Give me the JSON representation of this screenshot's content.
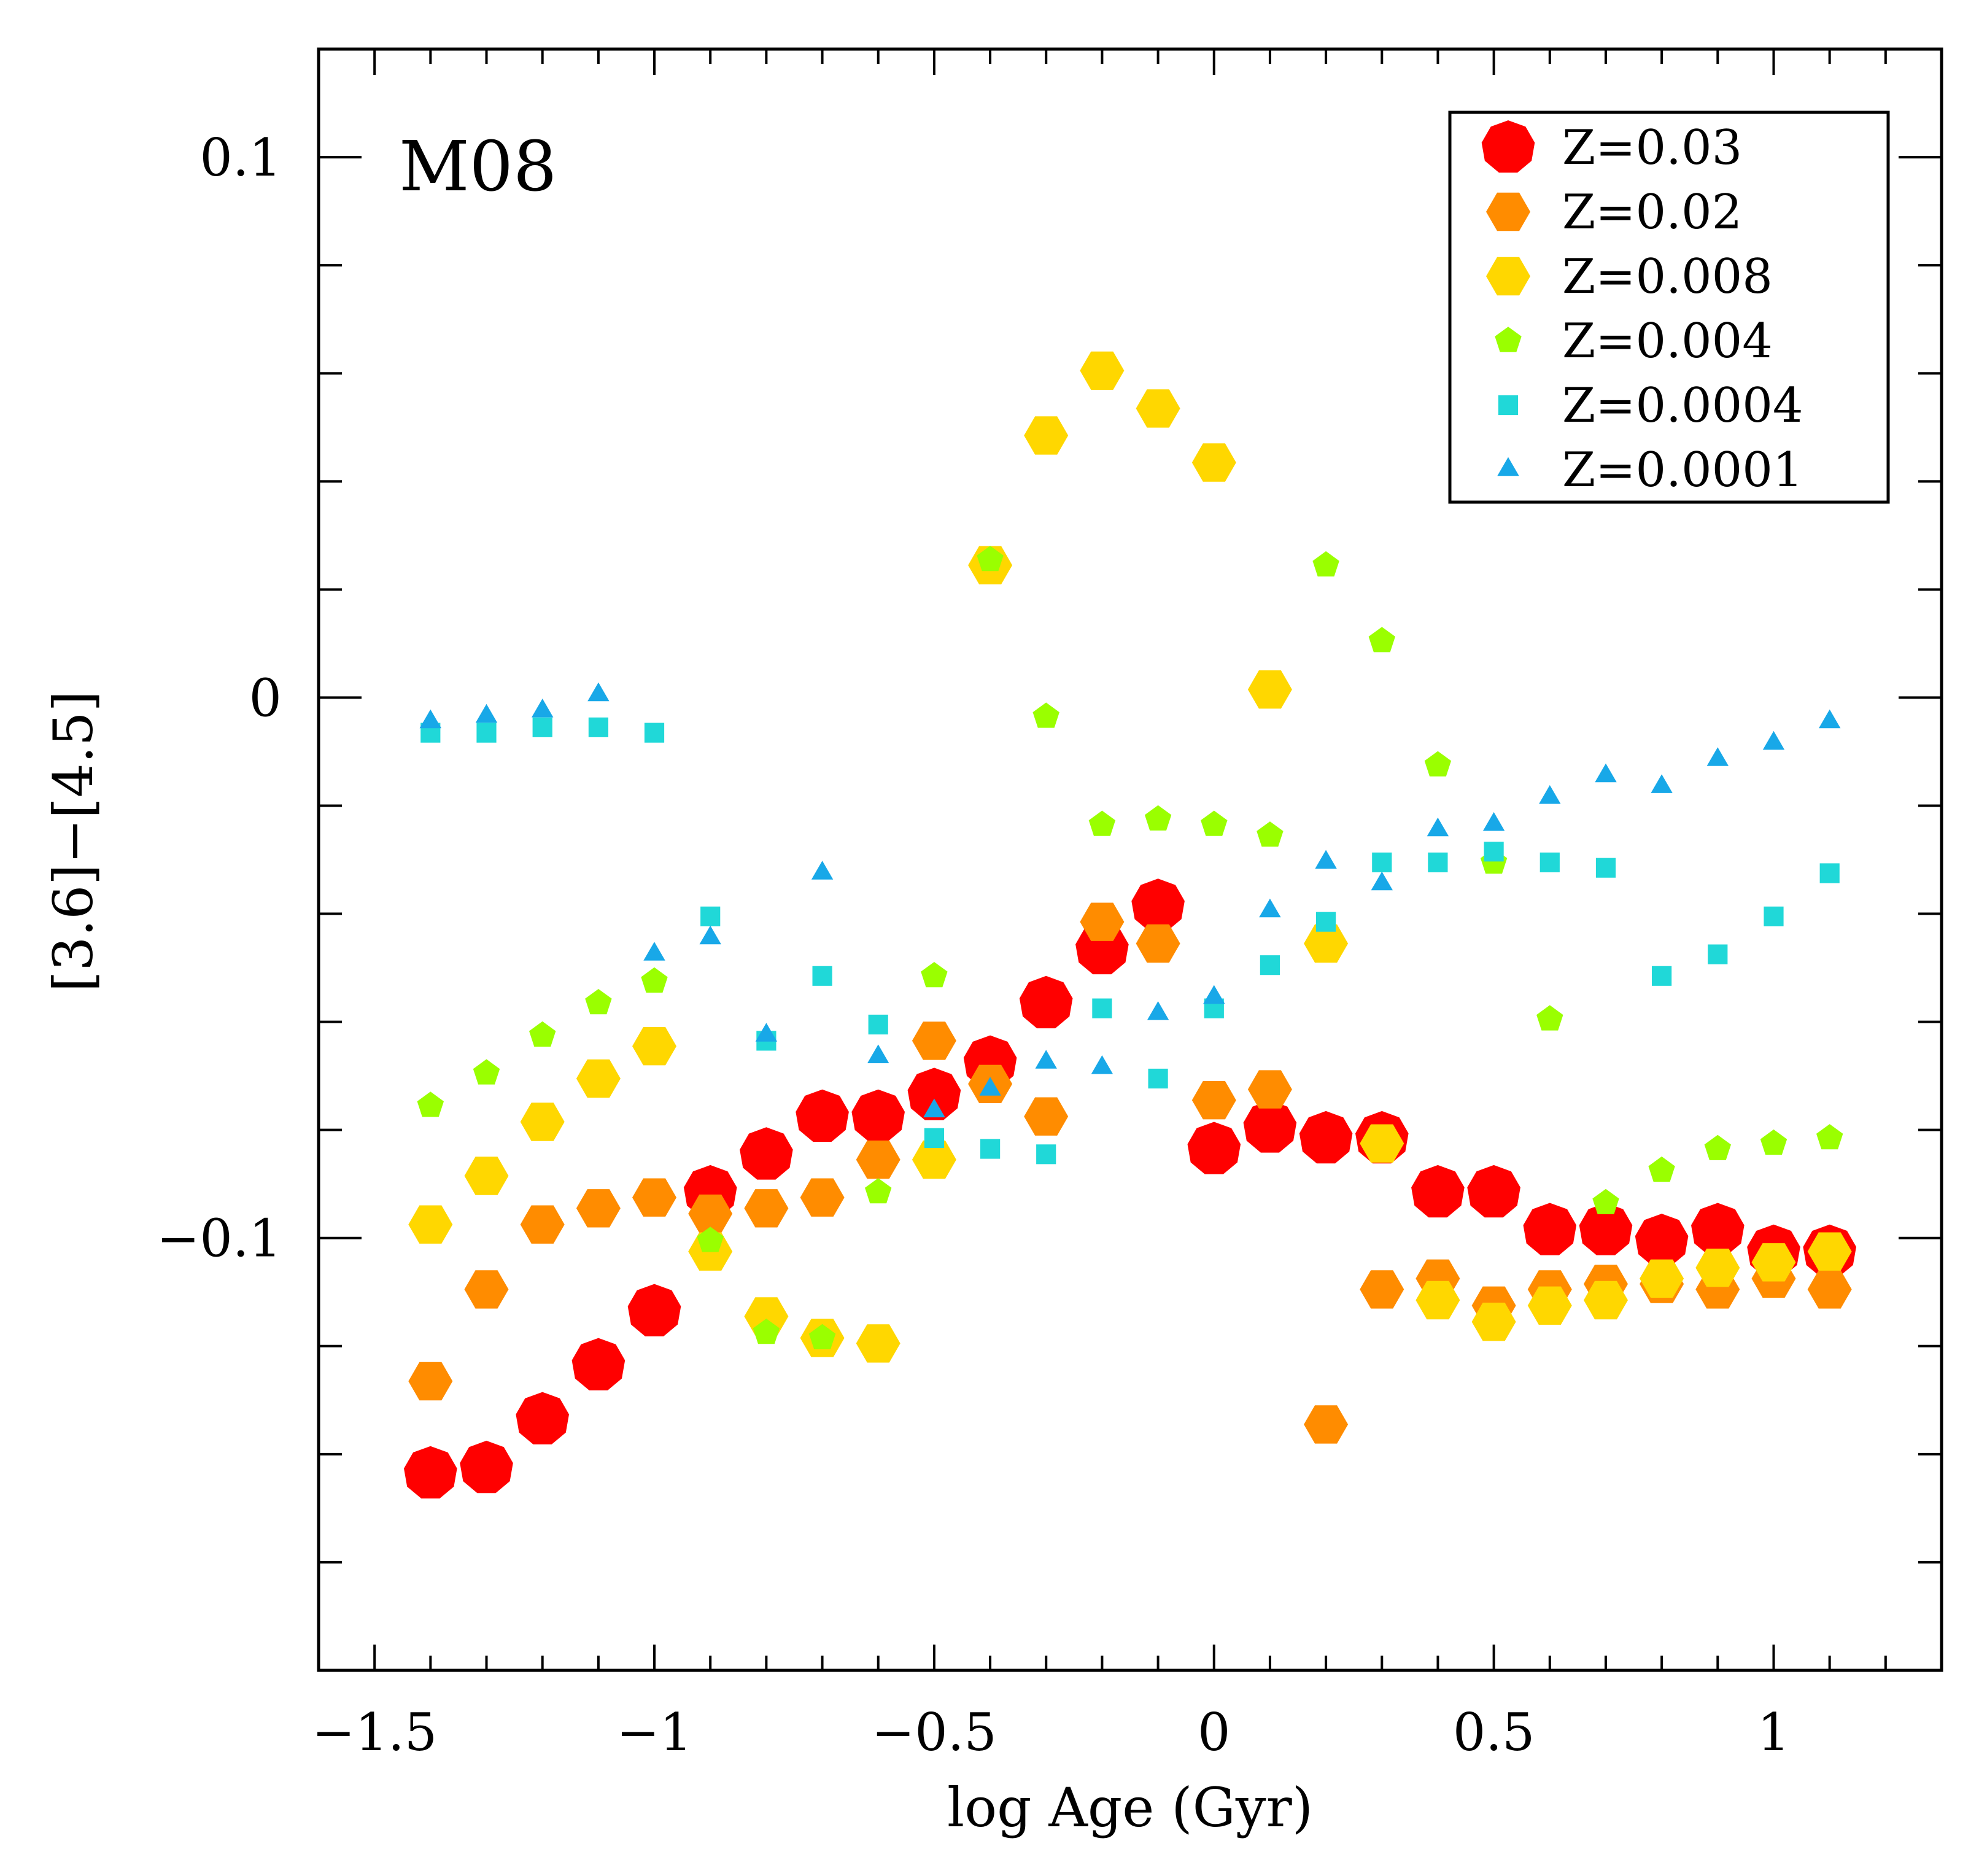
{
  "chart_data": {
    "type": "scatter",
    "title": "",
    "panel_label": "M08",
    "xlabel": "log Age (Gyr)",
    "ylabel": "[3.6]−[4.5]",
    "xlim": [
      -1.6,
      1.3
    ],
    "ylim": [
      -0.18,
      0.12
    ],
    "grid": false,
    "legend_position": "top-right",
    "x_ticks": [
      {
        "value": -1.5,
        "label": "−1.5"
      },
      {
        "value": -1.0,
        "label": "−1"
      },
      {
        "value": -0.5,
        "label": "−0.5"
      },
      {
        "value": 0.0,
        "label": "0"
      },
      {
        "value": 0.5,
        "label": "0.5"
      },
      {
        "value": 1.0,
        "label": "1"
      }
    ],
    "y_ticks": [
      {
        "value": 0.1,
        "label": "0.1"
      },
      {
        "value": 0.0,
        "label": "0"
      },
      {
        "value": -0.1,
        "label": "−0.1"
      }
    ],
    "series": [
      {
        "name": "Z=0.03",
        "color": "#ff0000",
        "marker": "heptagon",
        "size": "large",
        "points": [
          [
            -1.4,
            -0.1435
          ],
          [
            -1.3,
            -0.1425
          ],
          [
            -1.2,
            -0.1335
          ],
          [
            -1.1,
            -0.1235
          ],
          [
            -1.0,
            -0.1135
          ],
          [
            -0.9,
            -0.0915
          ],
          [
            -0.8,
            -0.0845
          ],
          [
            -0.7,
            -0.0775
          ],
          [
            -0.6,
            -0.0775
          ],
          [
            -0.5,
            -0.0735
          ],
          [
            -0.4,
            -0.0675
          ],
          [
            -0.3,
            -0.0565
          ],
          [
            -0.2,
            -0.0465
          ],
          [
            -0.1,
            -0.0385
          ],
          [
            0.0,
            -0.0835
          ],
          [
            0.1,
            -0.0795
          ],
          [
            0.2,
            -0.0815
          ],
          [
            0.3,
            -0.0815
          ],
          [
            0.4,
            -0.0915
          ],
          [
            0.5,
            -0.0915
          ],
          [
            0.6,
            -0.0985
          ],
          [
            0.7,
            -0.0985
          ],
          [
            0.8,
            -0.1005
          ],
          [
            0.9,
            -0.0985
          ],
          [
            1.0,
            -0.1025
          ],
          [
            1.1,
            -0.1025
          ]
        ]
      },
      {
        "name": "Z=0.02",
        "color": "#ff8c00",
        "marker": "hexagon",
        "size": "medium",
        "points": [
          [
            -1.4,
            -0.1265
          ],
          [
            -1.3,
            -0.1095
          ],
          [
            -1.2,
            -0.0975
          ],
          [
            -1.1,
            -0.0945
          ],
          [
            -1.0,
            -0.0925
          ],
          [
            -0.9,
            -0.0955
          ],
          [
            -0.8,
            -0.0945
          ],
          [
            -0.7,
            -0.0925
          ],
          [
            -0.6,
            -0.0855
          ],
          [
            -0.5,
            -0.0635
          ],
          [
            -0.4,
            -0.0715
          ],
          [
            -0.3,
            -0.0775
          ],
          [
            -0.2,
            -0.0415
          ],
          [
            -0.1,
            -0.0455
          ],
          [
            0.0,
            -0.0745
          ],
          [
            0.1,
            -0.0725
          ],
          [
            0.2,
            -0.1345
          ],
          [
            0.3,
            -0.1095
          ],
          [
            0.4,
            -0.1075
          ],
          [
            0.5,
            -0.1125
          ],
          [
            0.6,
            -0.1095
          ],
          [
            0.7,
            -0.1085
          ],
          [
            0.8,
            -0.1085
          ],
          [
            0.9,
            -0.1095
          ],
          [
            1.0,
            -0.1075
          ],
          [
            1.1,
            -0.1095
          ]
        ]
      },
      {
        "name": "Z=0.008",
        "color": "#ffd700",
        "marker": "hexagon",
        "size": "medium",
        "points": [
          [
            -1.4,
            -0.0975
          ],
          [
            -1.3,
            -0.0885
          ],
          [
            -1.2,
            -0.0785
          ],
          [
            -1.1,
            -0.0705
          ],
          [
            -1.0,
            -0.0645
          ],
          [
            -0.9,
            -0.1025
          ],
          [
            -0.8,
            -0.1145
          ],
          [
            -0.7,
            -0.1185
          ],
          [
            -0.6,
            -0.1195
          ],
          [
            -0.5,
            -0.0855
          ],
          [
            -0.4,
            0.0245
          ],
          [
            -0.3,
            0.0485
          ],
          [
            -0.2,
            0.0605
          ],
          [
            -0.1,
            0.0535
          ],
          [
            0.0,
            0.0435
          ],
          [
            0.1,
            0.0015
          ],
          [
            0.2,
            -0.0455
          ],
          [
            0.3,
            -0.0825
          ],
          [
            0.4,
            -0.1115
          ],
          [
            0.5,
            -0.1155
          ],
          [
            0.6,
            -0.1125
          ],
          [
            0.7,
            -0.1115
          ],
          [
            0.8,
            -0.1075
          ],
          [
            0.9,
            -0.1055
          ],
          [
            1.0,
            -0.1045
          ],
          [
            1.1,
            -0.1025
          ]
        ]
      },
      {
        "name": "Z=0.004",
        "color": "#9aff00",
        "marker": "pentagon",
        "size": "small",
        "points": [
          [
            -1.4,
            -0.0755
          ],
          [
            -1.3,
            -0.0695
          ],
          [
            -1.2,
            -0.0625
          ],
          [
            -1.1,
            -0.0565
          ],
          [
            -1.0,
            -0.0525
          ],
          [
            -0.9,
            -0.1005
          ],
          [
            -0.8,
            -0.1175
          ],
          [
            -0.7,
            -0.1185
          ],
          [
            -0.6,
            -0.0915
          ],
          [
            -0.5,
            -0.0515
          ],
          [
            -0.4,
            0.0255
          ],
          [
            -0.3,
            -0.0035
          ],
          [
            -0.2,
            -0.0235
          ],
          [
            -0.1,
            -0.0225
          ],
          [
            0.0,
            -0.0235
          ],
          [
            0.1,
            -0.0255
          ],
          [
            0.2,
            0.0245
          ],
          [
            0.3,
            0.0105
          ],
          [
            0.4,
            -0.0125
          ],
          [
            0.5,
            -0.0305
          ],
          [
            0.6,
            -0.0595
          ],
          [
            0.7,
            -0.0935
          ],
          [
            0.8,
            -0.0875
          ],
          [
            0.9,
            -0.0835
          ],
          [
            1.0,
            -0.0825
          ],
          [
            1.1,
            -0.0815
          ]
        ]
      },
      {
        "name": "Z=0.0004",
        "color": "#20d8d8",
        "marker": "square",
        "size": "small",
        "points": [
          [
            -1.4,
            -0.0065
          ],
          [
            -1.3,
            -0.0065
          ],
          [
            -1.2,
            -0.0055
          ],
          [
            -1.1,
            -0.0055
          ],
          [
            -1.0,
            -0.0065
          ],
          [
            -0.9,
            -0.0405
          ],
          [
            -0.8,
            -0.0635
          ],
          [
            -0.7,
            -0.0515
          ],
          [
            -0.6,
            -0.0605
          ],
          [
            -0.5,
            -0.0815
          ],
          [
            -0.4,
            -0.0835
          ],
          [
            -0.3,
            -0.0845
          ],
          [
            -0.2,
            -0.0575
          ],
          [
            -0.1,
            -0.0705
          ],
          [
            0.0,
            -0.0575
          ],
          [
            0.1,
            -0.0495
          ],
          [
            0.2,
            -0.0415
          ],
          [
            0.3,
            -0.0305
          ],
          [
            0.4,
            -0.0305
          ],
          [
            0.5,
            -0.0285
          ],
          [
            0.6,
            -0.0305
          ],
          [
            0.7,
            -0.0315
          ],
          [
            0.8,
            -0.0515
          ],
          [
            0.9,
            -0.0475
          ],
          [
            1.0,
            -0.0405
          ],
          [
            1.1,
            -0.0325
          ]
        ]
      },
      {
        "name": "Z=0.0001",
        "color": "#18a8e8",
        "marker": "triangle",
        "size": "small",
        "points": [
          [
            -1.4,
            -0.0045
          ],
          [
            -1.3,
            -0.0035
          ],
          [
            -1.2,
            -0.0025
          ],
          [
            -1.1,
            0.0005
          ],
          [
            -0.9,
            -0.0445
          ],
          [
            -1.0,
            -0.0475
          ],
          [
            -0.8,
            -0.0625
          ],
          [
            -0.7,
            -0.0325
          ],
          [
            -0.6,
            -0.0665
          ],
          [
            -0.5,
            -0.0765
          ],
          [
            -0.4,
            -0.0725
          ],
          [
            -0.3,
            -0.0675
          ],
          [
            -0.2,
            -0.0685
          ],
          [
            -0.1,
            -0.0585
          ],
          [
            0.0,
            -0.0555
          ],
          [
            0.1,
            -0.0395
          ],
          [
            0.2,
            -0.0305
          ],
          [
            0.3,
            -0.0345
          ],
          [
            0.4,
            -0.0245
          ],
          [
            0.5,
            -0.0235
          ],
          [
            0.6,
            -0.0185
          ],
          [
            0.7,
            -0.0145
          ],
          [
            0.8,
            -0.0165
          ],
          [
            0.9,
            -0.0115
          ],
          [
            1.0,
            -0.0085
          ],
          [
            1.1,
            -0.0045
          ]
        ]
      }
    ]
  }
}
